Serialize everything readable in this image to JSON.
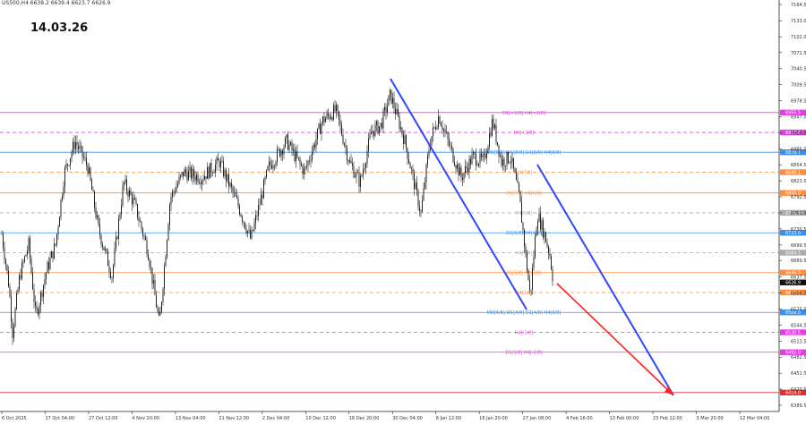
{
  "header": {
    "symbol_info": "US500,H4  6638.2 6639.4 6623.7 6626.9"
  },
  "date_stamp": "14.03.26",
  "chart_data": {
    "type": "candlestick",
    "symbol": "US500",
    "timeframe": "H4",
    "ohlc_last": {
      "open": 6638.2,
      "high": 6639.4,
      "low": 6623.7,
      "close": 6626.9
    },
    "current_price": "6626.9",
    "ylim": [
      6389.5,
      7164.5
    ],
    "y_ticks": [
      "7164.5",
      "7133.0",
      "7102.0",
      "7071.5",
      "7040.5",
      "7009.5",
      "6978.5",
      "6947.0",
      "6916.5",
      "6885.5",
      "6854.5",
      "6823.5",
      "6792.5",
      "6761.5",
      "6730.5",
      "6699.5",
      "6669.5",
      "6637.5",
      "6606.5",
      "6575.5",
      "6544.5",
      "6513.5",
      "6482.5",
      "6451.5",
      "6420.5",
      "6389.5"
    ],
    "x_ticks": [
      "6 Oct 2025",
      "17 Oct 04:00",
      "27 Oct 12:00",
      "4 Nov 20:00",
      "13 Nov 04:00",
      "21 Nov 12:00",
      "2 Dec 04:00",
      "10 Dec 12:00",
      "18 Dec 20:00",
      "30 Dec 04:00",
      "8 Jan 12:00",
      "16 Jan 20:00",
      "27 Jan 08:00",
      "4 Feb 16:00",
      "13 Feb 00:00",
      "23 Feb 12:00",
      "3 Mar 20:00",
      "12 Mar 04:00"
    ],
    "levels": [
      {
        "price": 6955.5,
        "color": "#e040e0",
        "style": "solid",
        "label": "D1[+1/8] H4[+2/8]",
        "tag": "6955.5"
      },
      {
        "price": 6917.0,
        "color": "#e040e0",
        "style": "dashed",
        "label": "H4[+1/8]",
        "tag": "6917.0"
      },
      {
        "price": 6878.7,
        "color": "#3a8fe8",
        "style": "solid",
        "label": "MN[5/8] W1[8/8] D1[8/8] H4[8/8]",
        "tag": "6878.7"
      },
      {
        "price": 6840.1,
        "color": "#ff8c3c",
        "style": "dashed",
        "label": "H4[7/8]",
        "tag": "6840.1"
      },
      {
        "price": 6800.0,
        "color": "#ff8c3c",
        "style": "solid",
        "label": "D1[7/8] H4[6/8]",
        "tag": "6800.0"
      },
      {
        "price": 6761.5,
        "color": "#aaaaaa",
        "style": "dashed",
        "label": "H4[5/8]",
        "tag": "6761.5"
      },
      {
        "price": 6723.0,
        "color": "#3a8fe8",
        "style": "solid",
        "label": "D1[6/8] H4[4/8]",
        "tag": "6723.0"
      },
      {
        "price": 6684.5,
        "color": "#aaaaaa",
        "style": "dashed",
        "label": "H4[3/8]",
        "tag": "6684.5"
      },
      {
        "price": 6646.0,
        "color": "#ff8c3c",
        "style": "solid",
        "label": "D1[5/8] H4[2/8]",
        "tag": "6646.0"
      },
      {
        "price": 6607.5,
        "color": "#ff8c3c",
        "style": "dashed",
        "label": "H4[1/8]",
        "tag": "6607.5"
      },
      {
        "price": 6569.0,
        "color": "#3a8fe8",
        "style": "solid",
        "label": "MN[4/8] W1[4/8] D1[4/8] H4[0/8]",
        "tag": "6569.0"
      },
      {
        "price": 6530.5,
        "color": "#e040e0",
        "style": "dashed",
        "label": "H4[-1/8]",
        "tag": "6530.5"
      },
      {
        "price": 6492.0,
        "color": "#e040e0",
        "style": "solid",
        "label": "D1[3/8] H4[-2/8]",
        "tag": "6492.0"
      },
      {
        "price": 6414.0,
        "color": "#e03030",
        "style": "solid",
        "label": "",
        "tag": "6414.0"
      }
    ],
    "grid": false
  }
}
